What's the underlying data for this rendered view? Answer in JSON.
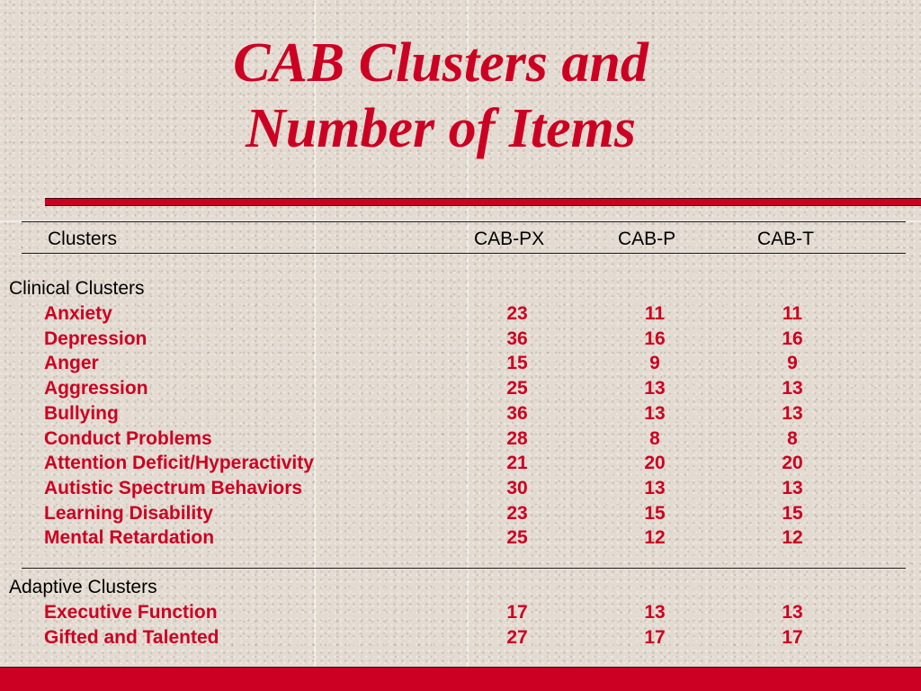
{
  "slide": {
    "title_line1": "CAB Clusters and",
    "title_line2": "Number of Items"
  },
  "table": {
    "headers": {
      "clusters": "Clusters",
      "px": "CAB-PX",
      "p": "CAB-P",
      "t": "CAB-T"
    },
    "clinical_label": "Clinical Clusters",
    "clinical_rows": [
      {
        "name": "Anxiety",
        "px": "23",
        "p": "11",
        "t": "11"
      },
      {
        "name": "Depression",
        "px": "36",
        "p": "16",
        "t": "16"
      },
      {
        "name": "Anger",
        "px": "15",
        "p": "9",
        "t": "9"
      },
      {
        "name": "Aggression",
        "px": "25",
        "p": "13",
        "t": "13"
      },
      {
        "name": "Bullying",
        "px": "36",
        "p": "13",
        "t": "13"
      },
      {
        "name": "Conduct Problems",
        "px": "28",
        "p": "8",
        "t": "8"
      },
      {
        "name": "Attention Deficit/Hyperactivity",
        "px": "21",
        "p": "20",
        "t": "20"
      },
      {
        "name": "Autistic Spectrum Behaviors",
        "px": "30",
        "p": "13",
        "t": "13"
      },
      {
        "name": "Learning Disability",
        "px": "23",
        "p": "15",
        "t": "15"
      },
      {
        "name": "Mental Retardation",
        "px": "25",
        "p": "12",
        "t": "12"
      }
    ],
    "adaptive_label": "Adaptive Clusters",
    "adaptive_rows": [
      {
        "name": "Executive Function",
        "px": "17",
        "p": "13",
        "t": "13"
      },
      {
        "name": "Gifted and Talented",
        "px": "27",
        "p": "17",
        "t": "17"
      }
    ]
  },
  "colors": {
    "accent_red": "#cc0022",
    "background": "#e3dbd1"
  }
}
